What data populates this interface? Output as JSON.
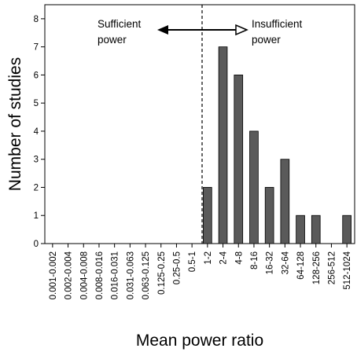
{
  "chart_data": {
    "type": "bar",
    "categories": [
      "0.001-0.002",
      "0.002-0.004",
      "0.004-0.008",
      "0.008-0.016",
      "0.016-0.031",
      "0.031-0.063",
      "0.063-0.125",
      "0.125-0.25",
      "0.25-0.5",
      "0.5-1",
      "1-2",
      "2-4",
      "4-8",
      "8-16",
      "16-32",
      "32-64",
      "64-128",
      "128-256",
      "256-512",
      "512-1024"
    ],
    "values": [
      0,
      0,
      0,
      0,
      0,
      0,
      0,
      0,
      0,
      0,
      2,
      7,
      6,
      4,
      2,
      3,
      1,
      1,
      0,
      1
    ],
    "xlabel": "Mean power ratio",
    "ylabel": "Number of studies",
    "ylim": [
      0,
      8.5
    ],
    "yticks": [
      0,
      1,
      2,
      3,
      4,
      5,
      6,
      7,
      8
    ],
    "bar_color": "#5a5a5a",
    "grid": false,
    "annotations": {
      "left_line1": "Sufficient",
      "left_line2": "power",
      "right_line1": "Insufficient",
      "right_line2": "power"
    }
  }
}
